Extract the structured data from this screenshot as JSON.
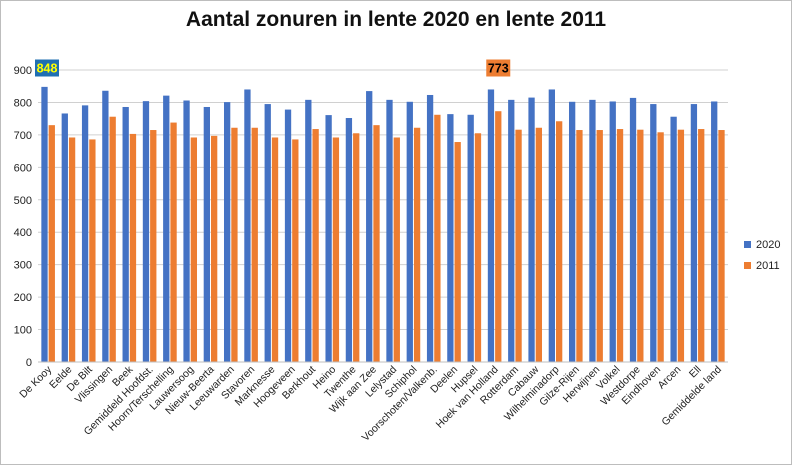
{
  "chart_data": {
    "type": "bar",
    "title": "Aantal zonuren in lente 2020 en lente 2011",
    "xlabel": "",
    "ylabel": "",
    "ylim": [
      0,
      900
    ],
    "yticks": [
      0,
      100,
      200,
      300,
      400,
      500,
      600,
      700,
      800,
      900
    ],
    "grid": true,
    "legend_position": "right",
    "categories": [
      "De Kooy",
      "Eelde",
      "De Bilt",
      "Vlissingen",
      "Beek",
      "Gemiddeld Hoofdst.",
      "Hoorn/Terschelling",
      "Lauwersoog",
      "Nieuw-Beerta",
      "Leeuwarden",
      "Stavoren",
      "Marknesse",
      "Hoogeveen",
      "Berkhout",
      "Heino",
      "Twenthe",
      "Wijk aan Zee",
      "Lelystad",
      "Schiphol",
      "Voorschoten/Valkenb.",
      "Deelen",
      "Hupsel",
      "Hoek van Holland",
      "Rotterdam",
      "Cabauw",
      "Wilhelminadorp",
      "Gilze-Rijen",
      "Herwijnen",
      "Volkel",
      "Westdorpe",
      "Eindhoven",
      "Arcen",
      "Ell",
      "Gemiddelde land"
    ],
    "series": [
      {
        "name": "2020",
        "color": "#4472C4",
        "values": [
          848,
          766,
          791,
          836,
          786,
          804,
          821,
          806,
          786,
          801,
          840,
          795,
          778,
          808,
          761,
          752,
          835,
          808,
          802,
          823,
          764,
          762,
          840,
          808,
          815,
          840,
          802,
          808,
          803,
          814,
          795,
          756,
          795,
          803
        ]
      },
      {
        "name": "2011",
        "color": "#ED7D31",
        "values": [
          730,
          692,
          686,
          756,
          703,
          715,
          738,
          692,
          697,
          722,
          722,
          692,
          686,
          718,
          692,
          705,
          730,
          692,
          722,
          762,
          678,
          705,
          773,
          716,
          722,
          742,
          715,
          715,
          718,
          716,
          708,
          716,
          718,
          715
        ]
      }
    ],
    "annotations": [
      {
        "category": "De Kooy",
        "series": "2020",
        "text": "848",
        "background": "#1F6FB2",
        "color": "#FFFF00"
      },
      {
        "category": "Hoek van Holland",
        "series": "2011",
        "text": "773",
        "background": "#ED7D31",
        "color": "#000000"
      }
    ]
  }
}
